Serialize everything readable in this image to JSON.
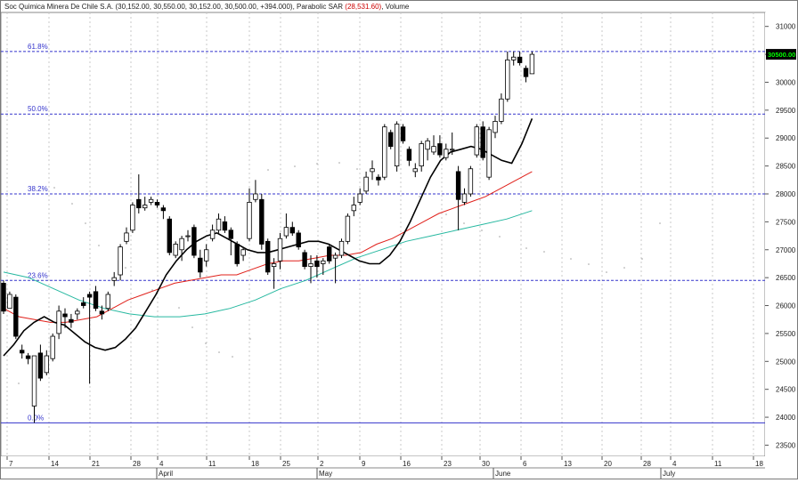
{
  "header": {
    "symbol": "Soc Quimica Minera De Chile S.A.",
    "ohlc": "(30,152.00, 30,550.00, 30,152.00, 30,500.00, +394.000)",
    "indicator": "Parabolic SAR",
    "indicator_value": "(28,531.60)",
    "volume_label": "Volume"
  },
  "price_tag": "30500.00",
  "colors": {
    "fib_line": "#3333cc",
    "ma_fast": "#000000",
    "ma_mid": "#e0201a",
    "ma_slow": "#26b8a0",
    "sar": "#a0a0a0",
    "price_tag_bg": "#000000",
    "price_tag_fg": "#00ff00"
  },
  "chart_data": {
    "type": "candlestick",
    "y_axis": {
      "ticks": [
        23500,
        24000,
        24500,
        25000,
        25500,
        26000,
        26500,
        27000,
        27500,
        28000,
        28500,
        29000,
        29500,
        30000,
        30500,
        31000
      ],
      "side": "right"
    },
    "x_axis": {
      "day_ticks": [
        "7",
        "14",
        "21",
        "28",
        "4",
        "11",
        "18",
        "25",
        "2",
        "9",
        "16",
        "23",
        "30",
        "6",
        "13",
        "20",
        "28",
        "4",
        "11",
        "18"
      ],
      "month_labels": [
        "April",
        "May",
        "June",
        "July"
      ]
    },
    "fibonacci": [
      {
        "label": "61.8%",
        "value": 30550
      },
      {
        "label": "50.0%",
        "value": 29430
      },
      {
        "label": "38.2%",
        "value": 28000
      },
      {
        "label": "23.6%",
        "value": 26450
      },
      {
        "label": "0.0%",
        "value": 23900
      }
    ],
    "candles": [
      {
        "o": 26400,
        "h": 26450,
        "l": 25850,
        "c": 25900
      },
      {
        "o": 25950,
        "h": 26250,
        "l": 25950,
        "c": 26200
      },
      {
        "o": 26150,
        "h": 26200,
        "l": 25400,
        "c": 25450
      },
      {
        "o": 25200,
        "h": 25300,
        "l": 25050,
        "c": 25150
      },
      {
        "o": 25100,
        "h": 25150,
        "l": 24950,
        "c": 25050
      },
      {
        "o": 24200,
        "h": 25100,
        "l": 23900,
        "c": 25100
      },
      {
        "o": 25150,
        "h": 25300,
        "l": 24650,
        "c": 24700
      },
      {
        "o": 24800,
        "h": 25200,
        "l": 24750,
        "c": 25100
      },
      {
        "o": 25050,
        "h": 25500,
        "l": 25000,
        "c": 25450
      },
      {
        "o": 25500,
        "h": 26000,
        "l": 25400,
        "c": 25900
      },
      {
        "o": 25850,
        "h": 25950,
        "l": 25600,
        "c": 25800
      },
      {
        "o": 25750,
        "h": 25850,
        "l": 25600,
        "c": 25700
      },
      {
        "o": 25850,
        "h": 25950,
        "l": 25750,
        "c": 25900
      },
      {
        "o": 26050,
        "h": 26150,
        "l": 25950,
        "c": 26000
      },
      {
        "o": 26200,
        "h": 26250,
        "l": 24600,
        "c": 26150
      },
      {
        "o": 26250,
        "h": 26350,
        "l": 25900,
        "c": 25950
      },
      {
        "o": 25900,
        "h": 26000,
        "l": 25750,
        "c": 25850
      },
      {
        "o": 25950,
        "h": 26250,
        "l": 25900,
        "c": 26200
      },
      {
        "o": 26450,
        "h": 26600,
        "l": 26350,
        "c": 26500
      },
      {
        "o": 26550,
        "h": 27100,
        "l": 26450,
        "c": 27050
      },
      {
        "o": 27150,
        "h": 27400,
        "l": 27100,
        "c": 27300
      },
      {
        "o": 27350,
        "h": 27850,
        "l": 27300,
        "c": 27800
      },
      {
        "o": 27900,
        "h": 28350,
        "l": 27650,
        "c": 27750
      },
      {
        "o": 27750,
        "h": 27950,
        "l": 27700,
        "c": 27800
      },
      {
        "o": 27850,
        "h": 27950,
        "l": 27800,
        "c": 27900
      },
      {
        "o": 27850,
        "h": 27900,
        "l": 27750,
        "c": 27800
      },
      {
        "o": 27750,
        "h": 27800,
        "l": 27550,
        "c": 27700
      },
      {
        "o": 27550,
        "h": 27600,
        "l": 26900,
        "c": 26950
      },
      {
        "o": 26900,
        "h": 27150,
        "l": 26850,
        "c": 27100
      },
      {
        "o": 27000,
        "h": 27250,
        "l": 26800,
        "c": 27200
      },
      {
        "o": 27250,
        "h": 27350,
        "l": 27150,
        "c": 27250
      },
      {
        "o": 27400,
        "h": 27450,
        "l": 26850,
        "c": 26900
      },
      {
        "o": 26850,
        "h": 27000,
        "l": 26500,
        "c": 26600
      },
      {
        "o": 26800,
        "h": 27100,
        "l": 26700,
        "c": 27000
      },
      {
        "o": 27200,
        "h": 27450,
        "l": 27150,
        "c": 27350
      },
      {
        "o": 27350,
        "h": 27650,
        "l": 27300,
        "c": 27550
      },
      {
        "o": 27500,
        "h": 27600,
        "l": 27300,
        "c": 27350
      },
      {
        "o": 27350,
        "h": 27400,
        "l": 26900,
        "c": 27200
      },
      {
        "o": 27100,
        "h": 27150,
        "l": 26700,
        "c": 26750
      },
      {
        "o": 26900,
        "h": 27050,
        "l": 26800,
        "c": 27000
      },
      {
        "o": 27200,
        "h": 28100,
        "l": 27150,
        "c": 27850
      },
      {
        "o": 27900,
        "h": 28250,
        "l": 27850,
        "c": 28000
      },
      {
        "o": 27900,
        "h": 28000,
        "l": 27000,
        "c": 27100
      },
      {
        "o": 27150,
        "h": 27200,
        "l": 26550,
        "c": 26600
      },
      {
        "o": 26700,
        "h": 26850,
        "l": 26300,
        "c": 26750
      },
      {
        "o": 26800,
        "h": 27300,
        "l": 26650,
        "c": 27200
      },
      {
        "o": 27250,
        "h": 27650,
        "l": 27200,
        "c": 27400
      },
      {
        "o": 27400,
        "h": 27500,
        "l": 27250,
        "c": 27300
      },
      {
        "o": 27300,
        "h": 27350,
        "l": 27000,
        "c": 27050
      },
      {
        "o": 26950,
        "h": 27000,
        "l": 26650,
        "c": 26700
      },
      {
        "o": 26700,
        "h": 26900,
        "l": 26400,
        "c": 26750
      },
      {
        "o": 26800,
        "h": 26900,
        "l": 26500,
        "c": 26700
      },
      {
        "o": 26750,
        "h": 26850,
        "l": 26550,
        "c": 26800
      },
      {
        "o": 27050,
        "h": 27100,
        "l": 26750,
        "c": 26800
      },
      {
        "o": 26850,
        "h": 26950,
        "l": 26400,
        "c": 26900
      },
      {
        "o": 26900,
        "h": 27200,
        "l": 26850,
        "c": 27150
      },
      {
        "o": 27150,
        "h": 27650,
        "l": 27100,
        "c": 27600
      },
      {
        "o": 27700,
        "h": 27950,
        "l": 27600,
        "c": 27800
      },
      {
        "o": 27850,
        "h": 28100,
        "l": 27800,
        "c": 28000
      },
      {
        "o": 28050,
        "h": 28400,
        "l": 28000,
        "c": 28300
      },
      {
        "o": 28400,
        "h": 28600,
        "l": 28250,
        "c": 28450
      },
      {
        "o": 28300,
        "h": 28350,
        "l": 28150,
        "c": 28250
      },
      {
        "o": 28300,
        "h": 29250,
        "l": 28250,
        "c": 29200
      },
      {
        "o": 29100,
        "h": 29150,
        "l": 28800,
        "c": 28850
      },
      {
        "o": 28500,
        "h": 29300,
        "l": 28400,
        "c": 29250
      },
      {
        "o": 29200,
        "h": 29250,
        "l": 28900,
        "c": 28950
      },
      {
        "o": 28800,
        "h": 28850,
        "l": 28500,
        "c": 28600
      },
      {
        "o": 28400,
        "h": 28550,
        "l": 28300,
        "c": 28450
      },
      {
        "o": 28500,
        "h": 28950,
        "l": 28400,
        "c": 28900
      },
      {
        "o": 28800,
        "h": 29000,
        "l": 28600,
        "c": 28950
      },
      {
        "o": 28750,
        "h": 29050,
        "l": 28700,
        "c": 28850
      },
      {
        "o": 28900,
        "h": 29050,
        "l": 28650,
        "c": 28700
      },
      {
        "o": 28650,
        "h": 28900,
        "l": 28600,
        "c": 28800
      },
      {
        "o": 28800,
        "h": 29100,
        "l": 28700,
        "c": 28800
      },
      {
        "o": 28400,
        "h": 28500,
        "l": 27350,
        "c": 27900
      },
      {
        "o": 27850,
        "h": 28100,
        "l": 27800,
        "c": 28000
      },
      {
        "o": 28000,
        "h": 28500,
        "l": 27950,
        "c": 28450
      },
      {
        "o": 28700,
        "h": 29250,
        "l": 28650,
        "c": 29200
      },
      {
        "o": 29200,
        "h": 29300,
        "l": 28600,
        "c": 28650
      },
      {
        "o": 28300,
        "h": 29200,
        "l": 28250,
        "c": 29150
      },
      {
        "o": 29100,
        "h": 29400,
        "l": 29000,
        "c": 29300
      },
      {
        "o": 29300,
        "h": 29800,
        "l": 29250,
        "c": 29700
      },
      {
        "o": 29700,
        "h": 30550,
        "l": 29650,
        "c": 30400
      },
      {
        "o": 30400,
        "h": 30550,
        "l": 30300,
        "c": 30450
      },
      {
        "o": 30450,
        "h": 30550,
        "l": 30300,
        "c": 30350
      },
      {
        "o": 30250,
        "h": 30300,
        "l": 30000,
        "c": 30100
      },
      {
        "o": 30152,
        "h": 30550,
        "l": 30152,
        "c": 30500
      }
    ],
    "series": [
      {
        "values": [
          25100,
          25300,
          25550,
          25700,
          25800,
          25700,
          25650,
          25500,
          25350,
          25250,
          25200,
          25250,
          25400,
          25600,
          25900,
          26200,
          26550,
          26800,
          27000,
          27150,
          27250,
          27300,
          27200,
          27100,
          27000,
          26950,
          26950,
          27000,
          27050,
          27100,
          27150,
          27150,
          27100,
          27000,
          26900,
          26800,
          26750,
          26750,
          26900,
          27150,
          27500,
          27900,
          28300,
          28600,
          28750,
          28800,
          28850,
          28800,
          28700,
          28600,
          28550,
          28900,
          29350
        ]
      },
      {
        "values": [
          25950,
          25800,
          25750,
          25700,
          25700,
          25750,
          25800,
          25950,
          26100,
          26200,
          26300,
          26400,
          26450,
          26500,
          26550,
          26550,
          26650,
          26750,
          26800,
          26800,
          26850,
          26900,
          26900,
          26950,
          27100,
          27200,
          27350,
          27500,
          27650,
          27750,
          27850,
          27950,
          28100,
          28250,
          28400
        ]
      },
      {
        "values": [
          26600,
          26500,
          26300,
          26100,
          25950,
          25850,
          25800,
          25800,
          25850,
          25950,
          26100,
          26300,
          26450,
          26650,
          26850,
          27000,
          27150,
          27250,
          27350,
          27450,
          27550,
          27700
        ]
      }
    ]
  }
}
